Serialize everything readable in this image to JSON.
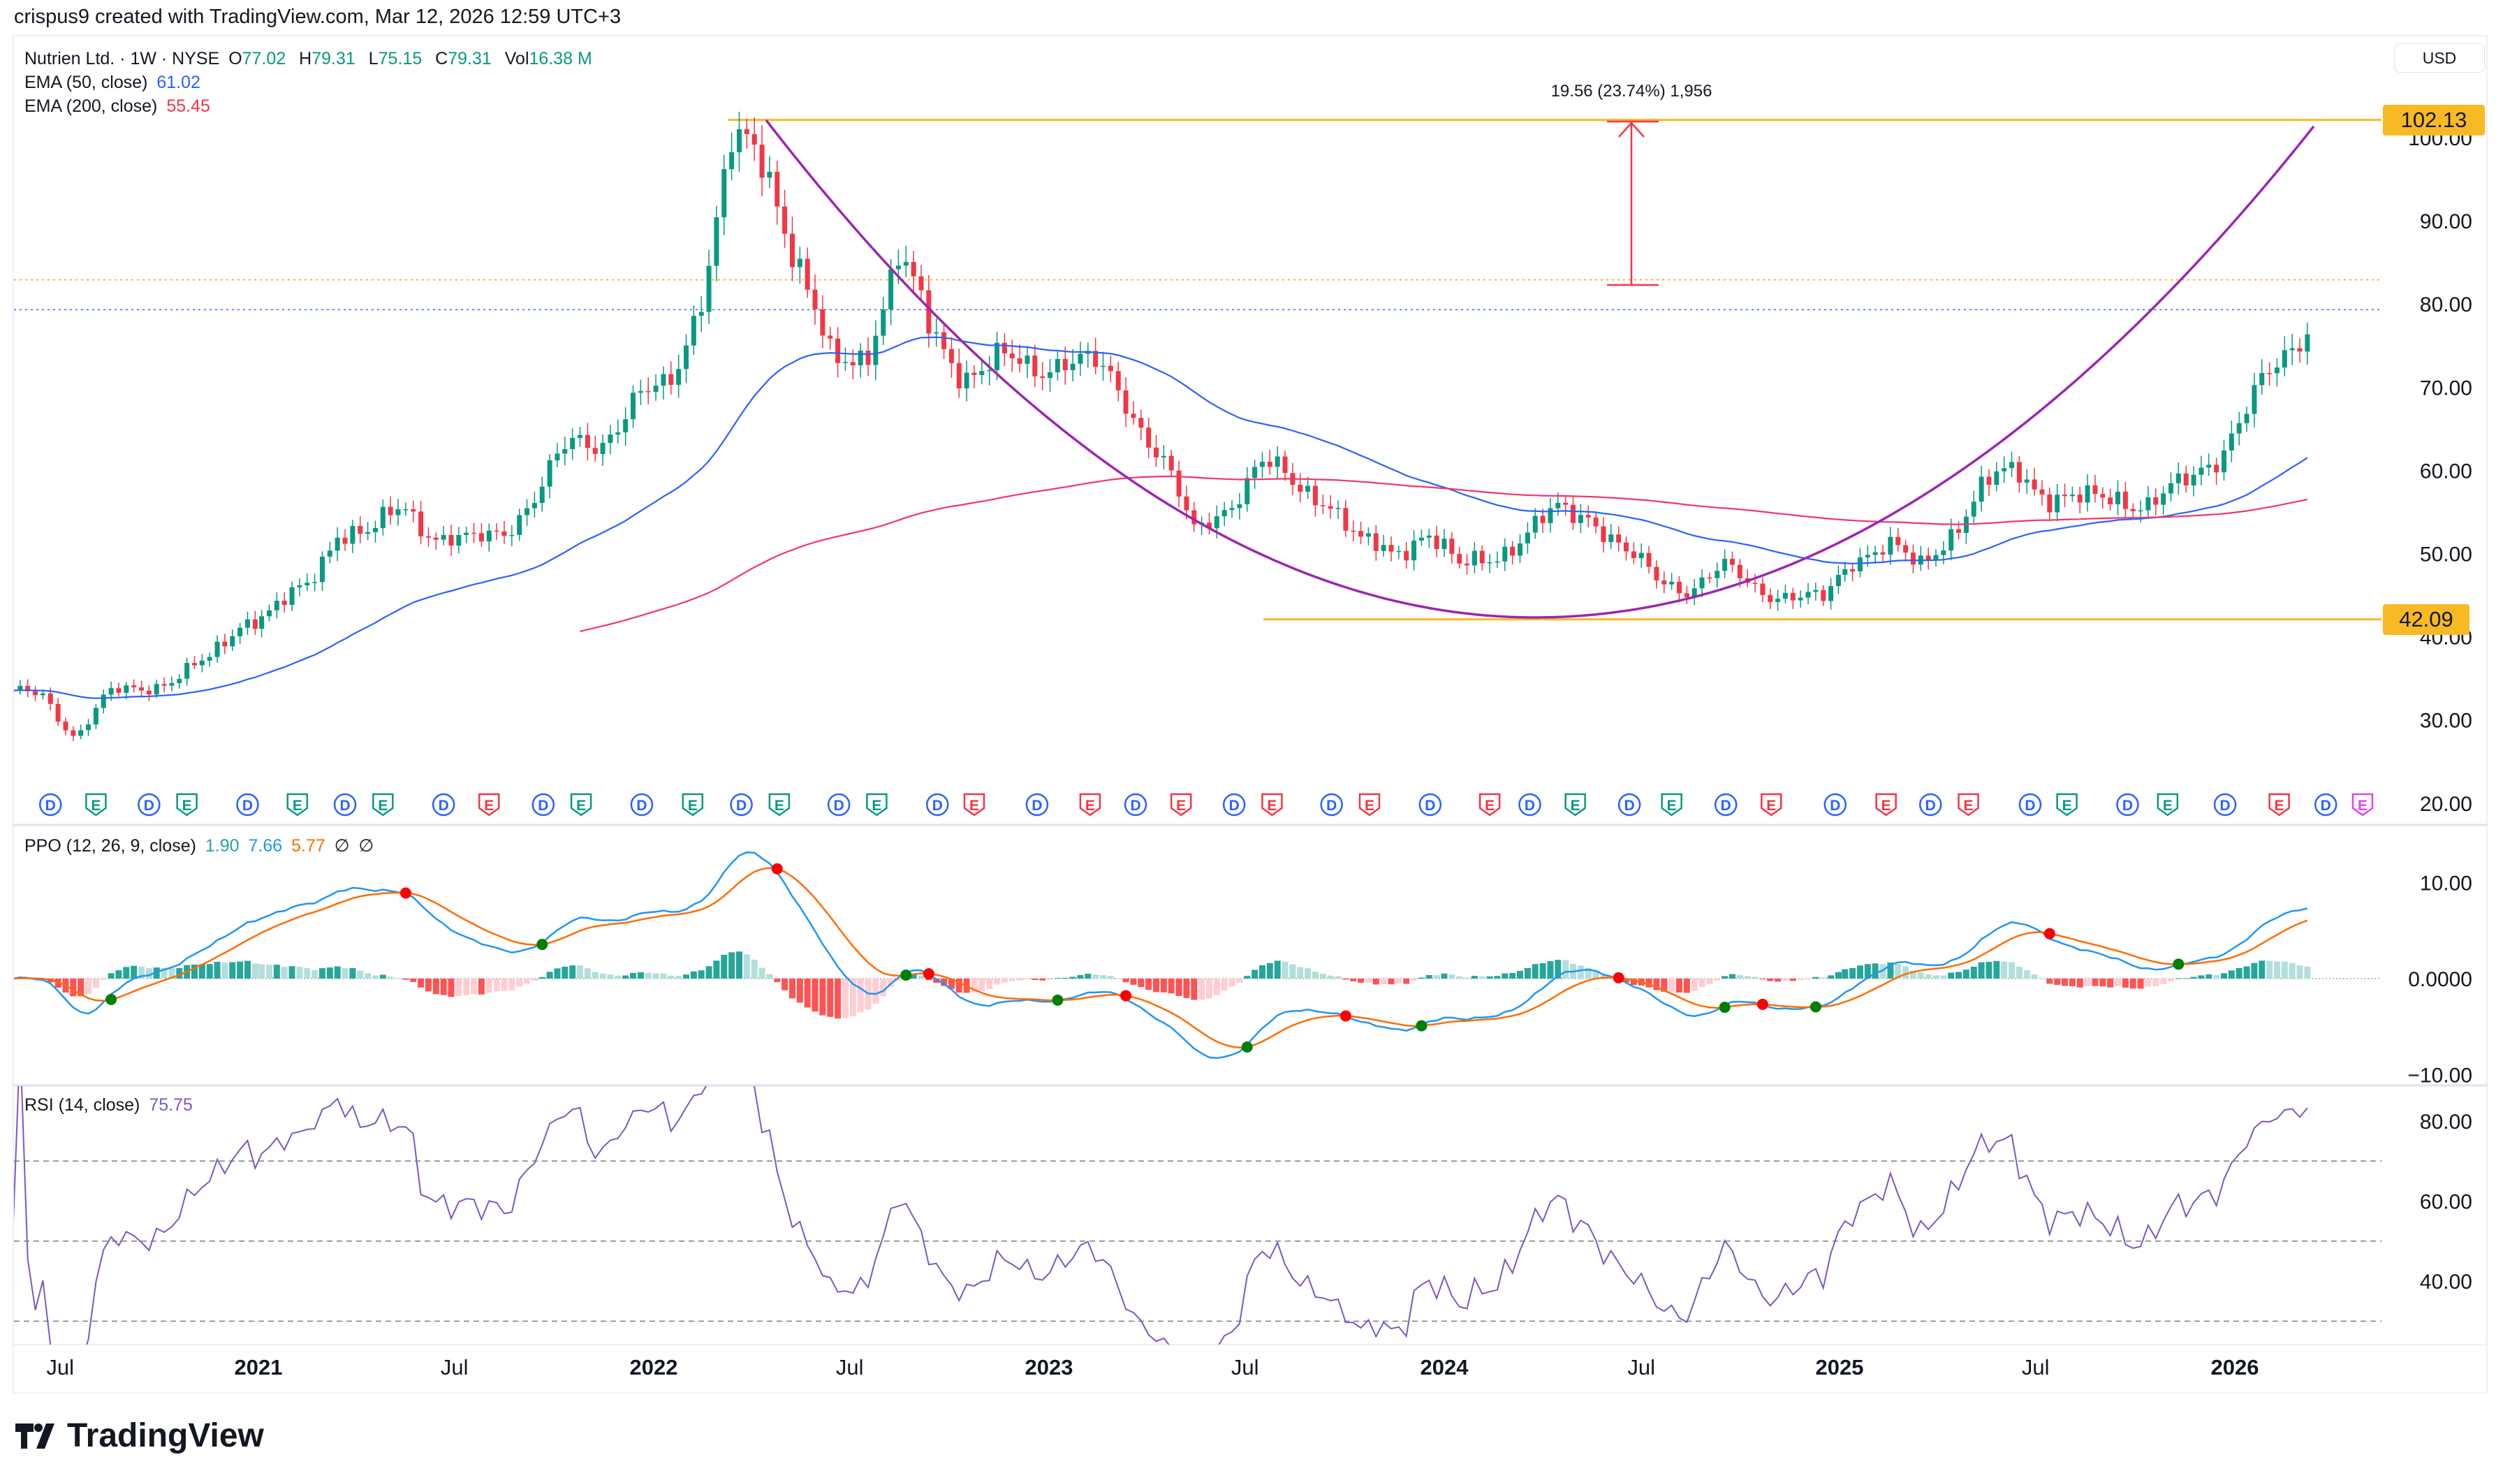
{
  "header": {
    "attribution": "crispus9 created with TradingView.com, Mar 12, 2026 12:59 UTC+3"
  },
  "legend": {
    "symbol": "Nutrien Ltd. · 1W · NYSE",
    "o_label": "O",
    "o": "77.02",
    "h_label": "H",
    "h": "79.31",
    "l_label": "L",
    "l": "75.15",
    "c_label": "C",
    "c": "79.31",
    "vol_label": "Vol",
    "vol": "16.38 M",
    "ema50_label": "EMA (50, close)",
    "ema50": "61.02",
    "ema200_label": "EMA (200, close)",
    "ema200": "55.45"
  },
  "currency": "USD",
  "ppo_legend": {
    "label": "PPO (12, 26, 9, close)",
    "hist": "1.90",
    "ppo": "7.66",
    "signal": "5.77",
    "na1": "∅",
    "na2": "∅"
  },
  "rsi_legend": {
    "label": "RSI (14, close)",
    "value": "75.75"
  },
  "drawings": {
    "resistance": "102.13",
    "support": "42.09",
    "measure_label": "19.56 (23.74%) 1,956"
  },
  "colors": {
    "up": "#089981",
    "down": "#f23645",
    "ema50": "#2962ff",
    "ema200": "#f23669",
    "level_line": "#f7b924",
    "cup_curve": "#9c27b0",
    "measure": "#f23645",
    "ppo": "#2196f3",
    "signal": "#ff6d00",
    "rsi": "#7e57c2",
    "hist_up_strong": "#26a69a",
    "hist_up_weak": "#b2dfdb",
    "hist_down_strong": "#ff5252",
    "hist_down_weak": "#ffcdd2"
  },
  "logo": "TradingView",
  "chart_data": [
    {
      "type": "candlestick",
      "title": "Nutrien Ltd. · 1W · NYSE",
      "interval": "1W",
      "approx_monthly_closes": [
        [
          "2020-05",
          33
        ],
        [
          "2020-06",
          33
        ],
        [
          "2020-07",
          28
        ],
        [
          "2020-08",
          33
        ],
        [
          "2020-09",
          34
        ],
        [
          "2020-10",
          35
        ],
        [
          "2020-11",
          37
        ],
        [
          "2020-12",
          42
        ],
        [
          "2021-01",
          43
        ],
        [
          "2021-02",
          46
        ],
        [
          "2021-03",
          53
        ],
        [
          "2021-04",
          52
        ],
        [
          "2021-05",
          56
        ],
        [
          "2021-06",
          52
        ],
        [
          "2021-07",
          51
        ],
        [
          "2021-08",
          53
        ],
        [
          "2021-09",
          57
        ],
        [
          "2021-10",
          63
        ],
        [
          "2021-11",
          64
        ],
        [
          "2021-12",
          68
        ],
        [
          "2022-01",
          70
        ],
        [
          "2022-02",
          82
        ],
        [
          "2022-03",
          99
        ],
        [
          "2022-04",
          97
        ],
        [
          "2022-05",
          85
        ],
        [
          "2022-06",
          72
        ],
        [
          "2022-07",
          74
        ],
        [
          "2022-08",
          86
        ],
        [
          "2022-09",
          76
        ],
        [
          "2022-10",
          72
        ],
        [
          "2022-11",
          73
        ],
        [
          "2022-12",
          72
        ],
        [
          "2023-01",
          74
        ],
        [
          "2023-02",
          72
        ],
        [
          "2023-03",
          68
        ],
        [
          "2023-04",
          62
        ],
        [
          "2023-05",
          52
        ],
        [
          "2023-06",
          56
        ],
        [
          "2023-07",
          61
        ],
        [
          "2023-08",
          58
        ],
        [
          "2023-09",
          57
        ],
        [
          "2023-10",
          51
        ],
        [
          "2023-11",
          50
        ],
        [
          "2023-12",
          53
        ],
        [
          "2024-01",
          48
        ],
        [
          "2024-02",
          50
        ],
        [
          "2024-03",
          52
        ],
        [
          "2024-04",
          55
        ],
        [
          "2024-05",
          55
        ],
        [
          "2024-06",
          50
        ],
        [
          "2024-07",
          47
        ],
        [
          "2024-08",
          46
        ],
        [
          "2024-09",
          48
        ],
        [
          "2024-10",
          46
        ],
        [
          "2024-11",
          45
        ],
        [
          "2024-12",
          44
        ],
        [
          "2025-01",
          50
        ],
        [
          "2025-02",
          51
        ],
        [
          "2025-03",
          48
        ],
        [
          "2025-04",
          53
        ],
        [
          "2025-05",
          58
        ],
        [
          "2025-06",
          60
        ],
        [
          "2025-07",
          57
        ],
        [
          "2025-08",
          56
        ],
        [
          "2025-09",
          57
        ],
        [
          "2025-10",
          56
        ],
        [
          "2025-11",
          58
        ],
        [
          "2025-12",
          62
        ],
        [
          "2026-01",
          68
        ],
        [
          "2026-02",
          73
        ],
        [
          "2026-03",
          79.31
        ]
      ],
      "last_bar": {
        "open": 77.02,
        "high": 79.31,
        "low": 75.15,
        "close": 79.31
      },
      "y_ticks": [
        "100.00",
        "90.00",
        "80.00",
        "70.00",
        "60.00",
        "50.00",
        "40.00",
        "30.00",
        "20.00"
      ],
      "ylim": [
        20,
        102.13
      ],
      "x_ticks": [
        "Jul",
        "2021",
        "Jul",
        "2022",
        "Jul",
        "2023",
        "Jul",
        "2024",
        "Jul",
        "2025",
        "Jul",
        "2026"
      ],
      "overlays": [
        "EMA (50, close)",
        "EMA (200, close)"
      ],
      "levels": [
        102.13,
        42.09
      ],
      "events": [
        {
          "date": "2020-06-22",
          "label": "D",
          "color": "blue"
        },
        {
          "date": "2020-08-03",
          "label": "E",
          "color": "green"
        },
        {
          "date": "2020-09-21",
          "label": "D",
          "color": "blue"
        },
        {
          "date": "2020-10-26",
          "label": "E",
          "color": "green"
        },
        {
          "date": "2020-12-21",
          "label": "D",
          "color": "blue"
        },
        {
          "date": "2021-02-06",
          "label": "E",
          "color": "green"
        },
        {
          "date": "2021-03-22",
          "label": "D",
          "color": "blue"
        },
        {
          "date": "2021-04-26",
          "label": "E",
          "color": "green"
        },
        {
          "date": "2021-06-21",
          "label": "D",
          "color": "blue"
        },
        {
          "date": "2021-08-02",
          "label": "E",
          "color": "red"
        },
        {
          "date": "2021-09-21",
          "label": "D",
          "color": "blue"
        },
        {
          "date": "2021-10-26",
          "label": "E",
          "color": "green"
        },
        {
          "date": "2021-12-21",
          "label": "D",
          "color": "blue"
        },
        {
          "date": "2022-02-06",
          "label": "E",
          "color": "green"
        },
        {
          "date": "2022-03-23",
          "label": "D",
          "color": "blue"
        },
        {
          "date": "2022-04-27",
          "label": "E",
          "color": "green"
        },
        {
          "date": "2022-06-21",
          "label": "D",
          "color": "blue"
        },
        {
          "date": "2022-07-26",
          "label": "E",
          "color": "green"
        },
        {
          "date": "2022-09-20",
          "label": "D",
          "color": "blue"
        },
        {
          "date": "2022-10-24",
          "label": "E",
          "color": "red"
        },
        {
          "date": "2022-12-21",
          "label": "D",
          "color": "blue"
        },
        {
          "date": "2023-02-08",
          "label": "E",
          "color": "red"
        },
        {
          "date": "2023-03-22",
          "label": "D",
          "color": "blue"
        },
        {
          "date": "2023-05-03",
          "label": "E",
          "color": "red"
        },
        {
          "date": "2023-06-21",
          "label": "D",
          "color": "blue"
        },
        {
          "date": "2023-07-26",
          "label": "E",
          "color": "red"
        },
        {
          "date": "2023-09-19",
          "label": "D",
          "color": "blue"
        },
        {
          "date": "2023-10-24",
          "label": "E",
          "color": "red"
        },
        {
          "date": "2023-12-19",
          "label": "D",
          "color": "blue"
        },
        {
          "date": "2024-02-12",
          "label": "E",
          "color": "red"
        },
        {
          "date": "2024-03-20",
          "label": "D",
          "color": "blue"
        },
        {
          "date": "2024-05-01",
          "label": "E",
          "color": "green"
        },
        {
          "date": "2024-06-20",
          "label": "D",
          "color": "blue"
        },
        {
          "date": "2024-07-29",
          "label": "E",
          "color": "green"
        },
        {
          "date": "2024-09-17",
          "label": "D",
          "color": "blue"
        },
        {
          "date": "2024-10-29",
          "label": "E",
          "color": "red"
        },
        {
          "date": "2024-12-27",
          "label": "D",
          "color": "blue"
        },
        {
          "date": "2025-02-13",
          "label": "E",
          "color": "red"
        },
        {
          "date": "2025-03-26",
          "label": "D",
          "color": "blue"
        },
        {
          "date": "2025-04-30",
          "label": "E",
          "color": "red"
        },
        {
          "date": "2025-06-26",
          "label": "D",
          "color": "blue"
        },
        {
          "date": "2025-07-30",
          "label": "E",
          "color": "green"
        },
        {
          "date": "2025-09-24",
          "label": "D",
          "color": "blue"
        },
        {
          "date": "2025-10-31",
          "label": "E",
          "color": "green"
        },
        {
          "date": "2025-12-23",
          "label": "D",
          "color": "blue"
        },
        {
          "date": "2026-02-11",
          "label": "E",
          "color": "red"
        },
        {
          "date": "2026-03-26",
          "label": "D",
          "color": "blue"
        },
        {
          "date": "2026-04-29",
          "label": "E",
          "color": "magenta"
        }
      ]
    },
    {
      "type": "line",
      "title": "PPO (12, 26, 9, close)",
      "series": [
        {
          "name": "PPO",
          "last": 7.66
        },
        {
          "name": "Signal",
          "last": 5.77
        },
        {
          "name": "Histogram",
          "last": 1.9
        }
      ],
      "y_ticks": [
        "10.00",
        "0.0000",
        "−10.00"
      ],
      "ylim": [
        -11,
        15
      ]
    },
    {
      "type": "line",
      "title": "RSI (14, close)",
      "series": [
        {
          "name": "RSI",
          "last": 75.75
        }
      ],
      "y_ticks": [
        "80.00",
        "60.00",
        "40.00"
      ],
      "bands": [
        70,
        50,
        30
      ],
      "ylim": [
        27,
        88
      ]
    }
  ]
}
